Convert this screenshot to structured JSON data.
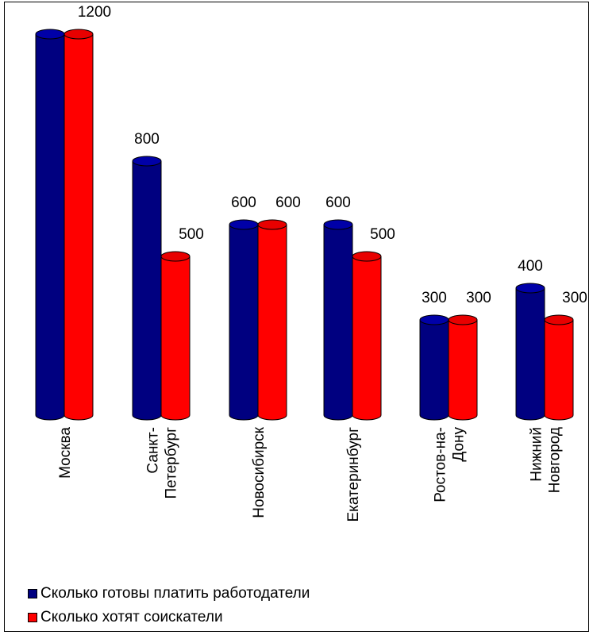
{
  "chart_data": {
    "type": "bar",
    "categories": [
      "Москва",
      "Санкт-Петербург",
      "Новосибирск",
      "Екатеринбург",
      "Ростов-на-Дону",
      "Нижний Новгород"
    ],
    "category_label_lines": [
      [
        "Москва"
      ],
      [
        "Санкт-",
        "Петербург"
      ],
      [
        "Новосибирск"
      ],
      [
        "Екатеринбург"
      ],
      [
        "Ростов-на-",
        "Дону"
      ],
      [
        "Нижний",
        "Новгород"
      ]
    ],
    "series": [
      {
        "name": "Сколько готовы платить работодатели",
        "values": [
          1200,
          800,
          600,
          600,
          300,
          400
        ],
        "color": "#000080"
      },
      {
        "name": "Сколько хотят соискатели",
        "values": [
          1200,
          500,
          600,
          500,
          300,
          300
        ],
        "color": "#ff0000"
      }
    ],
    "data_labels": [
      [
        "",
        "800",
        "600",
        "600",
        "300",
        "400"
      ],
      [
        "1200",
        "500",
        "600",
        "500",
        "300",
        "300"
      ]
    ],
    "ylim": [
      0,
      1200
    ],
    "grid": false,
    "legend_position": "bottom-left",
    "title": "",
    "xlabel": "",
    "ylabel": ""
  }
}
